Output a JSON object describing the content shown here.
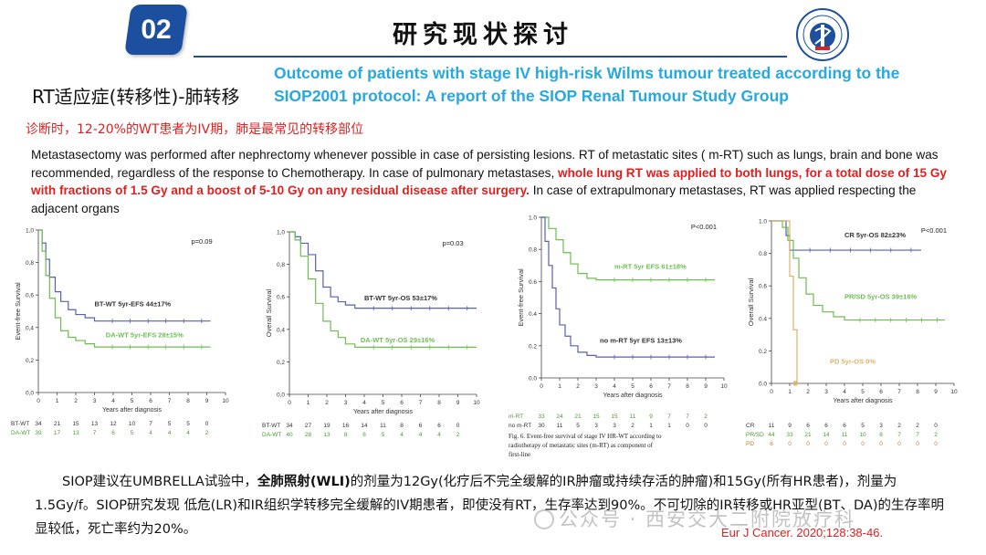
{
  "header": {
    "section_number": "02",
    "title": "研究现状探讨"
  },
  "rt_label": "RT适应症(转移性)-肺转移",
  "paper_title": "Outcome of patients with stage IV high-risk Wilms tumour treated according to the SIOP2001 protocol: A report of the SIOP Renal Tumour Study Group",
  "red_line": "诊断时，12-20%的WT患者为IV期，肺是最常见的转移部位",
  "body_en": {
    "part1": "Metastasectomy was performed after nephrectomy whenever possible in case of persisting lesions. RT of metastatic sites ( m-RT) such as lungs, brain and bone was recommended, regardless of the response to Chemotherapy. In case of pulmonary metastases, ",
    "highlight": "whole lung RT was applied to both lungs, for a total dose of 15 Gy with fractions of 1.5 Gy and a boost of 5-10 Gy on any residual disease after surgery.",
    "part2": " In case of extrapulmonary metastases, RT was applied respecting the adjacent organs"
  },
  "chart_data": [
    {
      "type": "line",
      "ylabel": "Event-free Survival",
      "xlabel": "Years after diagnosis",
      "p_value": "p=0.09",
      "ylim": [
        0,
        1.0
      ],
      "xlim": [
        0,
        10
      ],
      "yticks": [
        "0,0",
        "0,2",
        "0,4",
        "0,6",
        "0,8",
        "1,0"
      ],
      "xticks": [
        "0",
        "1",
        "2",
        "3",
        "4",
        "5",
        "6",
        "7",
        "8",
        "9",
        "10"
      ],
      "series": [
        {
          "name": "BT-WT 5yr-EFS 44±17%",
          "color": "#5a5fb0",
          "x": [
            0,
            0.2,
            0.4,
            0.6,
            0.9,
            1.2,
            1.6,
            2.0,
            2.5,
            3.0,
            9.2
          ],
          "y": [
            1.0,
            0.92,
            0.82,
            0.71,
            0.62,
            0.56,
            0.51,
            0.48,
            0.46,
            0.44,
            0.44
          ]
        },
        {
          "name": "DA-WT 5yr-EFS 28±15%",
          "color": "#6cbf4f",
          "x": [
            0,
            0.2,
            0.4,
            0.6,
            0.9,
            1.2,
            1.6,
            2.0,
            2.5,
            3.0,
            9.2
          ],
          "y": [
            1.0,
            0.87,
            0.72,
            0.58,
            0.46,
            0.38,
            0.34,
            0.32,
            0.3,
            0.28,
            0.28
          ]
        }
      ],
      "risk_table": {
        "rows": [
          {
            "label": "BT-WT",
            "values": [
              "34",
              "21",
              "15",
              "13",
              "12",
              "10",
              "7",
              "5",
              "5",
              "0"
            ]
          },
          {
            "label": "DA-WT",
            "values": [
              "39",
              "17",
              "13",
              "7",
              "6",
              "5",
              "4",
              "4",
              "4",
              "2"
            ]
          }
        ]
      }
    },
    {
      "type": "line",
      "ylabel": "Overall Survival",
      "xlabel": "Years after diagnosis",
      "p_value": "p=0.03",
      "ylim": [
        0,
        1.0
      ],
      "xlim": [
        0,
        10
      ],
      "yticks": [
        "0,0",
        "0,2",
        "0,4",
        "0,6",
        "0,8",
        "1,0"
      ],
      "xticks": [
        "0",
        "1",
        "2",
        "3",
        "4",
        "5",
        "6",
        "7",
        "8",
        "9",
        "10"
      ],
      "series": [
        {
          "name": "BT-WT 5yr-OS 53±17%",
          "color": "#5a5fb0",
          "x": [
            0,
            0.3,
            0.6,
            1.0,
            1.4,
            1.8,
            2.2,
            2.6,
            3.0,
            3.5,
            10
          ],
          "y": [
            1.0,
            0.97,
            0.93,
            0.86,
            0.76,
            0.66,
            0.6,
            0.57,
            0.55,
            0.53,
            0.53
          ]
        },
        {
          "name": "DA-WT 5yr-OS 29±16%",
          "color": "#6cbf4f",
          "x": [
            0,
            0.3,
            0.6,
            1.0,
            1.4,
            1.8,
            2.2,
            2.6,
            3.0,
            3.5,
            10
          ],
          "y": [
            1.0,
            0.95,
            0.85,
            0.71,
            0.56,
            0.45,
            0.39,
            0.35,
            0.31,
            0.29,
            0.29
          ]
        }
      ],
      "risk_table": {
        "rows": [
          {
            "label": "BT-WT",
            "values": [
              "34",
              "27",
              "19",
              "16",
              "14",
              "11",
              "8",
              "6",
              "6",
              "0"
            ]
          },
          {
            "label": "DA-WT",
            "values": [
              "40",
              "28",
              "13",
              "8",
              "6",
              "5",
              "4",
              "4",
              "4",
              "2"
            ]
          }
        ]
      }
    },
    {
      "type": "line",
      "ylabel": "Event-free Survival",
      "xlabel": "Years after diagnosis",
      "p_value": "P<0.001",
      "ylim": [
        0,
        1.0
      ],
      "xlim": [
        0,
        10
      ],
      "yticks": [
        "0.0",
        "0.2",
        "0.4",
        "0.6",
        "0.8",
        "1.0"
      ],
      "xticks": [
        "0",
        "1",
        "2",
        "3",
        "4",
        "5",
        "6",
        "7",
        "8",
        "9",
        "10"
      ],
      "series": [
        {
          "name": "m-RT 5yr EFS 61±18%",
          "color": "#6cbf4f",
          "x": [
            0,
            0.4,
            0.8,
            1.2,
            1.6,
            2.0,
            2.5,
            3.0,
            9.5
          ],
          "y": [
            1.0,
            0.93,
            0.86,
            0.78,
            0.71,
            0.65,
            0.62,
            0.61,
            0.61
          ]
        },
        {
          "name": "no m-RT 5yr EFS 13±13%",
          "color": "#5a5fb0",
          "x": [
            0,
            0.2,
            0.4,
            0.6,
            0.8,
            1.0,
            1.3,
            1.6,
            2.0,
            2.5,
            3.0,
            9.5
          ],
          "y": [
            1.0,
            0.85,
            0.7,
            0.56,
            0.43,
            0.33,
            0.26,
            0.2,
            0.16,
            0.14,
            0.13,
            0.13
          ]
        }
      ],
      "risk_table": {
        "rows": [
          {
            "label": "m-RT",
            "values": [
              "33",
              "24",
              "21",
              "15",
              "15",
              "11",
              "9",
              "7",
              "7",
              "2"
            ]
          },
          {
            "label": "no m-RT",
            "values": [
              "30",
              "11",
              "5",
              "3",
              "3",
              "2",
              "1",
              "1",
              "0",
              "0"
            ]
          }
        ]
      },
      "caption": "Fig. 6. Event-free survival of stage IV HR-WT according to radiotherapy of metastatic sites (m-RT) as component of first-line"
    },
    {
      "type": "line",
      "ylabel": "Overall Survival",
      "xlabel": "Years after diagnosis",
      "p_value": "P<0.001",
      "ylim": [
        0,
        1.0
      ],
      "xlim": [
        0,
        10
      ],
      "yticks": [
        "0.0",
        "0.2",
        "0.4",
        "0.6",
        "0.8",
        "1.0"
      ],
      "xticks": [
        "0",
        "1",
        "2",
        "3",
        "4",
        "5",
        "6",
        "7",
        "8",
        "9",
        "10"
      ],
      "series": [
        {
          "name": "CR 5yr-OS 82±23%",
          "color": "#5a5fb0",
          "x": [
            0,
            0.5,
            0.8,
            1.0,
            8.2
          ],
          "y": [
            1.0,
            1.0,
            0.91,
            0.82,
            0.82
          ]
        },
        {
          "name": "PR/SD 5yr-OS 39±16%",
          "color": "#6cbf4f",
          "x": [
            0,
            0.6,
            0.9,
            1.2,
            1.5,
            1.9,
            2.3,
            2.8,
            3.4,
            4.0,
            9.5
          ],
          "y": [
            1.0,
            0.96,
            0.88,
            0.77,
            0.65,
            0.55,
            0.48,
            0.44,
            0.41,
            0.39,
            0.39
          ]
        },
        {
          "name": "PD 5yr-OS 0%",
          "color": "#d9b36a",
          "x": [
            0,
            0.8,
            1.0,
            1.2,
            1.4
          ],
          "y": [
            1.0,
            1.0,
            0.66,
            0.33,
            0.0
          ]
        }
      ],
      "risk_table": {
        "rows": [
          {
            "label": "CR",
            "values": [
              "11",
              "9",
              "6",
              "6",
              "6",
              "5",
              "3",
              "2",
              "2",
              "0"
            ]
          },
          {
            "label": "PR/SD",
            "values": [
              "44",
              "33",
              "21",
              "14",
              "11",
              "10",
              "8",
              "7",
              "7",
              "2"
            ]
          },
          {
            "label": "PD",
            "values": [
              "6",
              "0",
              "0",
              "0",
              "0",
              "0",
              "0",
              "0",
              "0",
              "0"
            ]
          }
        ]
      }
    }
  ],
  "bottom_cn": {
    "part1": "SIOP建议在UMBRELLA试验中，",
    "bold": "全肺照射(WLI)",
    "part2": "的剂量为12Gy(化疗后不完全缓解的IR肿瘤或持续存活的肿瘤)和15Gy(所有HR患者)，剂量为1.5Gy/f。SIOP研究发现 低危(LR)和IR组织学转移完全缓解的IV期患者，即使没有RT，生存率达到90%。不可切除的IR转移或HR亚型(BT、DA)的生存率明显较低，死亡率约为20%。"
  },
  "reference": "Eur J Cancer. 2020;128:38-46.",
  "watermark": "公众号 · 西安交大二附院放疗科"
}
